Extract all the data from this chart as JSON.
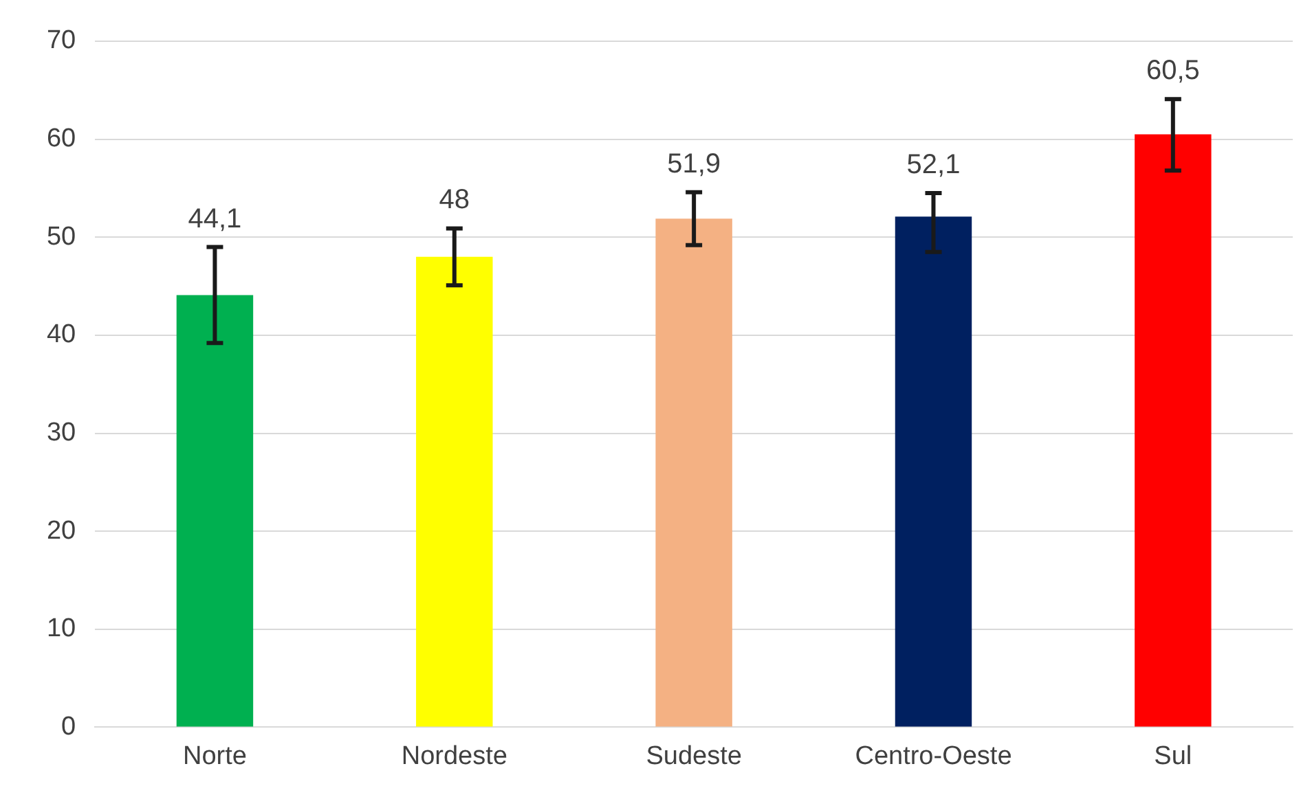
{
  "chart_data": {
    "type": "bar",
    "categories": [
      "Norte",
      "Nordeste",
      "Sudeste",
      "Centro-Oeste",
      "Sul"
    ],
    "values": [
      44.1,
      48,
      51.9,
      52.1,
      60.5
    ],
    "colors": [
      "#00b050",
      "#ffff00",
      "#f4b183",
      "#002060",
      "#ff0000"
    ],
    "errors": [
      [
        39.2,
        49.0
      ],
      [
        45.1,
        50.9
      ],
      [
        49.2,
        54.6
      ],
      [
        48.5,
        54.5
      ],
      [
        56.8,
        64.1
      ]
    ],
    "ylim": [
      0,
      70
    ],
    "yticks": [
      0,
      10,
      20,
      30,
      40,
      50,
      60,
      70
    ],
    "value_labels": [
      "44,1",
      "48",
      "51,9",
      "52,1",
      "60,5"
    ],
    "grid": "y",
    "legend": false
  }
}
